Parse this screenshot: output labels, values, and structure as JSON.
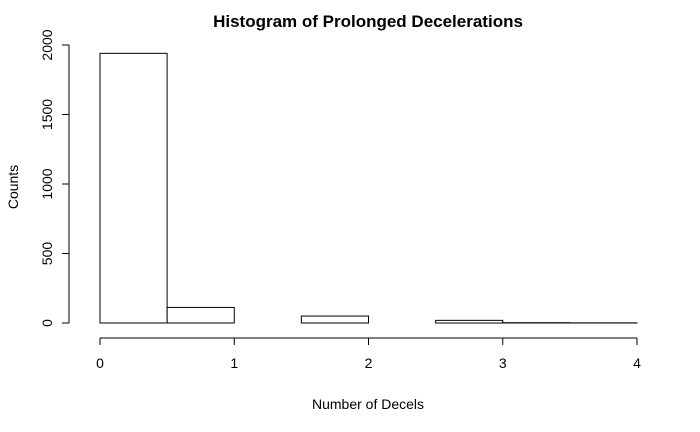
{
  "chart_data": {
    "type": "bar",
    "title": "Histogram of Prolonged Decelerations",
    "xlabel": "Number of Decels",
    "ylabel": "Counts",
    "bins": [
      {
        "start": 0.0,
        "end": 0.5,
        "count": 1940
      },
      {
        "start": 0.5,
        "end": 1.0,
        "count": 112
      },
      {
        "start": 1.0,
        "end": 1.5,
        "count": 0
      },
      {
        "start": 1.5,
        "end": 2.0,
        "count": 50
      },
      {
        "start": 2.0,
        "end": 2.5,
        "count": 0
      },
      {
        "start": 2.5,
        "end": 3.0,
        "count": 19
      },
      {
        "start": 3.0,
        "end": 3.5,
        "count": 2
      },
      {
        "start": 3.5,
        "end": 4.0,
        "count": 1
      }
    ],
    "xlim": [
      0,
      4
    ],
    "ylim": [
      0,
      2000
    ],
    "x_ticks": [
      0,
      1,
      2,
      3,
      4
    ],
    "y_ticks": [
      0,
      500,
      1000,
      1500,
      2000
    ],
    "grid": false,
    "legend": "none"
  }
}
